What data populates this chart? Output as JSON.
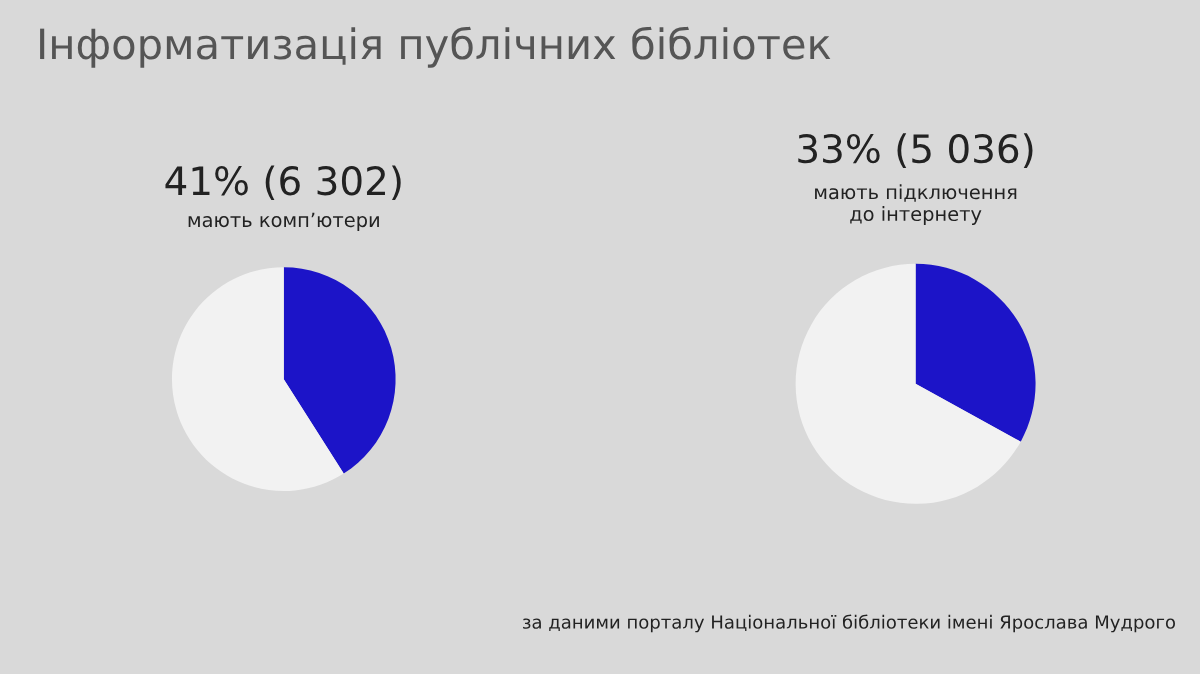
{
  "chart_data": [
    {
      "type": "pie",
      "title": "Інформатизація публічних бібліотек",
      "subtitle": "мають комп’ютери",
      "categories": [
        null,
        null
      ],
      "values": [
        41,
        59
      ],
      "colors": [
        "#1c14c8",
        "#f2f2f2"
      ],
      "value_labels": [
        "41% (6 302)",
        null
      ]
    },
    {
      "type": "pie",
      "subtitle": "мають підключення\nдо інтернету",
      "categories": [
        null,
        null
      ],
      "values": [
        33,
        67
      ],
      "colors": [
        "#1c14c8",
        "#f2f2f2"
      ],
      "value_labels": [
        "33% (5 036)",
        null
      ],
      "annotations": [
        "за даними порталу Національної бібліотеки імені Ярослава Мудрого"
      ]
    }
  ]
}
